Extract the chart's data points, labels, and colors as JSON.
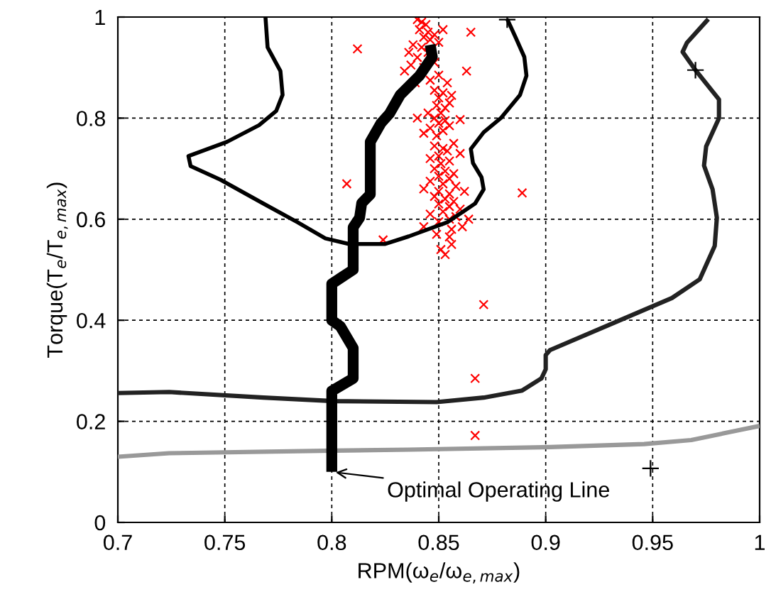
{
  "chart_data": {
    "type": "line",
    "xlabel": "RPM(ω$_{e}$/ω$_{e,max}$)",
    "ylabel": "Torque(T$_{e}$/T$_{e,max}$)",
    "xlim": [
      0.7,
      1
    ],
    "ylim": [
      0,
      1
    ],
    "xticks": [
      0.7,
      0.75,
      0.8,
      0.85,
      0.9,
      0.95,
      1
    ],
    "yticks": [
      0,
      0.2,
      0.4,
      0.6,
      0.8,
      1
    ],
    "grid": true,
    "line_style": "solid",
    "annotations": [
      {
        "text": "Optimal Operating Line",
        "x": 0.8,
        "y": 0.1
      }
    ],
    "series": [
      {
        "type": "line",
        "color": "#999999",
        "x": [
          0.7,
          0.724,
          0.801,
          0.836,
          0.902,
          0.946,
          0.968,
          1.0
        ],
        "values": [
          0.13,
          0.137,
          0.142,
          0.144,
          0.149,
          0.155,
          0.163,
          0.191
        ]
      },
      {
        "type": "line",
        "color": "#222222",
        "x": [
          0.7,
          0.724,
          0.768,
          0.801,
          0.849,
          0.871,
          0.889,
          0.898,
          0.9,
          0.9,
          0.902,
          0.933,
          0.959,
          0.972,
          0.979,
          0.98,
          0.978,
          0.974,
          0.975,
          0.981,
          0.981,
          0.97,
          0.964,
          0.966,
          0.976
        ],
        "values": [
          0.256,
          0.258,
          0.247,
          0.24,
          0.238,
          0.247,
          0.261,
          0.285,
          0.303,
          0.331,
          0.341,
          0.397,
          0.444,
          0.481,
          0.547,
          0.603,
          0.659,
          0.706,
          0.744,
          0.8,
          0.837,
          0.895,
          0.931,
          0.949,
          0.996
        ]
      },
      {
        "type": "line",
        "color": "#000000",
        "x": [
          0.769,
          0.77,
          0.776,
          0.777,
          0.774,
          0.766,
          0.751,
          0.733,
          0.734,
          0.748,
          0.768,
          0.784,
          0.797,
          0.808,
          0.825,
          0.836,
          0.854,
          0.867,
          0.871,
          0.87,
          0.866,
          0.865,
          0.871,
          0.879,
          0.888,
          0.891,
          0.89,
          0.886,
          0.882
        ],
        "values": [
          1,
          0.94,
          0.893,
          0.846,
          0.814,
          0.786,
          0.753,
          0.725,
          0.705,
          0.678,
          0.631,
          0.594,
          0.562,
          0.551,
          0.551,
          0.566,
          0.594,
          0.631,
          0.659,
          0.683,
          0.711,
          0.739,
          0.772,
          0.8,
          0.846,
          0.884,
          0.921,
          0.959,
          0.996
        ]
      },
      {
        "type": "scatter",
        "color": "#ff0000",
        "marker": "cross",
        "x": [
          0.812,
          0.807,
          0.824,
          0.865,
          0.863,
          0.86,
          0.889,
          0.871,
          0.867,
          0.867,
          0.84,
          0.842,
          0.844,
          0.841,
          0.845,
          0.848,
          0.852,
          0.843,
          0.846,
          0.85,
          0.838,
          0.842,
          0.845,
          0.836,
          0.84,
          0.848,
          0.837,
          0.843,
          0.834,
          0.85,
          0.846,
          0.839,
          0.854,
          0.848,
          0.852,
          0.856,
          0.85,
          0.855,
          0.849,
          0.853,
          0.845,
          0.851,
          0.848,
          0.853,
          0.85,
          0.855,
          0.846,
          0.852,
          0.843,
          0.849,
          0.84,
          0.857,
          0.848,
          0.852,
          0.854,
          0.85,
          0.846,
          0.855,
          0.851,
          0.86,
          0.848,
          0.853,
          0.857,
          0.85,
          0.855,
          0.846,
          0.852,
          0.858,
          0.843,
          0.85,
          0.855,
          0.862,
          0.848,
          0.853,
          0.857,
          0.85,
          0.855,
          0.86,
          0.852,
          0.846,
          0.858,
          0.864,
          0.855,
          0.85,
          0.843,
          0.856,
          0.861,
          0.849,
          0.855,
          0.856,
          0.851,
          0.853
        ],
        "values": [
          0.937,
          0.67,
          0.559,
          0.97,
          0.893,
          0.797,
          0.652,
          0.431,
          0.285,
          0.172,
          0.995,
          0.99,
          0.985,
          0.975,
          0.97,
          0.965,
          0.975,
          0.96,
          0.955,
          0.95,
          0.945,
          0.94,
          0.93,
          0.93,
          0.92,
          0.91,
          0.905,
          0.9,
          0.893,
          0.885,
          0.875,
          0.87,
          0.87,
          0.855,
          0.85,
          0.845,
          0.84,
          0.83,
          0.825,
          0.82,
          0.81,
          0.81,
          0.8,
          0.795,
          0.79,
          0.785,
          0.78,
          0.775,
          0.77,
          0.765,
          0.8,
          0.75,
          0.745,
          0.74,
          0.735,
          0.725,
          0.72,
          0.715,
          0.71,
          0.73,
          0.7,
          0.695,
          0.69,
          0.685,
          0.68,
          0.675,
          0.67,
          0.665,
          0.66,
          0.655,
          0.65,
          0.655,
          0.645,
          0.64,
          0.635,
          0.63,
          0.625,
          0.62,
          0.615,
          0.61,
          0.605,
          0.6,
          0.6,
          0.595,
          0.585,
          0.58,
          0.585,
          0.57,
          0.565,
          0.55,
          0.54,
          0.53
        ]
      },
      {
        "type": "line",
        "color": "#000000",
        "x": [
          0.8,
          0.8,
          0.81,
          0.81,
          0.804,
          0.8,
          0.8,
          0.805,
          0.81,
          0.81,
          0.813,
          0.814,
          0.818,
          0.818,
          0.823,
          0.827,
          0.832,
          0.841,
          0.847,
          0.846
        ],
        "values": [
          0.1,
          0.26,
          0.285,
          0.345,
          0.388,
          0.4,
          0.472,
          0.486,
          0.5,
          0.584,
          0.603,
          0.632,
          0.649,
          0.753,
          0.79,
          0.809,
          0.846,
          0.884,
          0.921,
          0.945
        ]
      },
      {
        "type": "scatter",
        "color": "#000000",
        "marker": "plus",
        "x": [
          0.882,
          0.97,
          0.949
        ],
        "values": [
          0.995,
          0.895,
          0.107
        ]
      }
    ]
  }
}
